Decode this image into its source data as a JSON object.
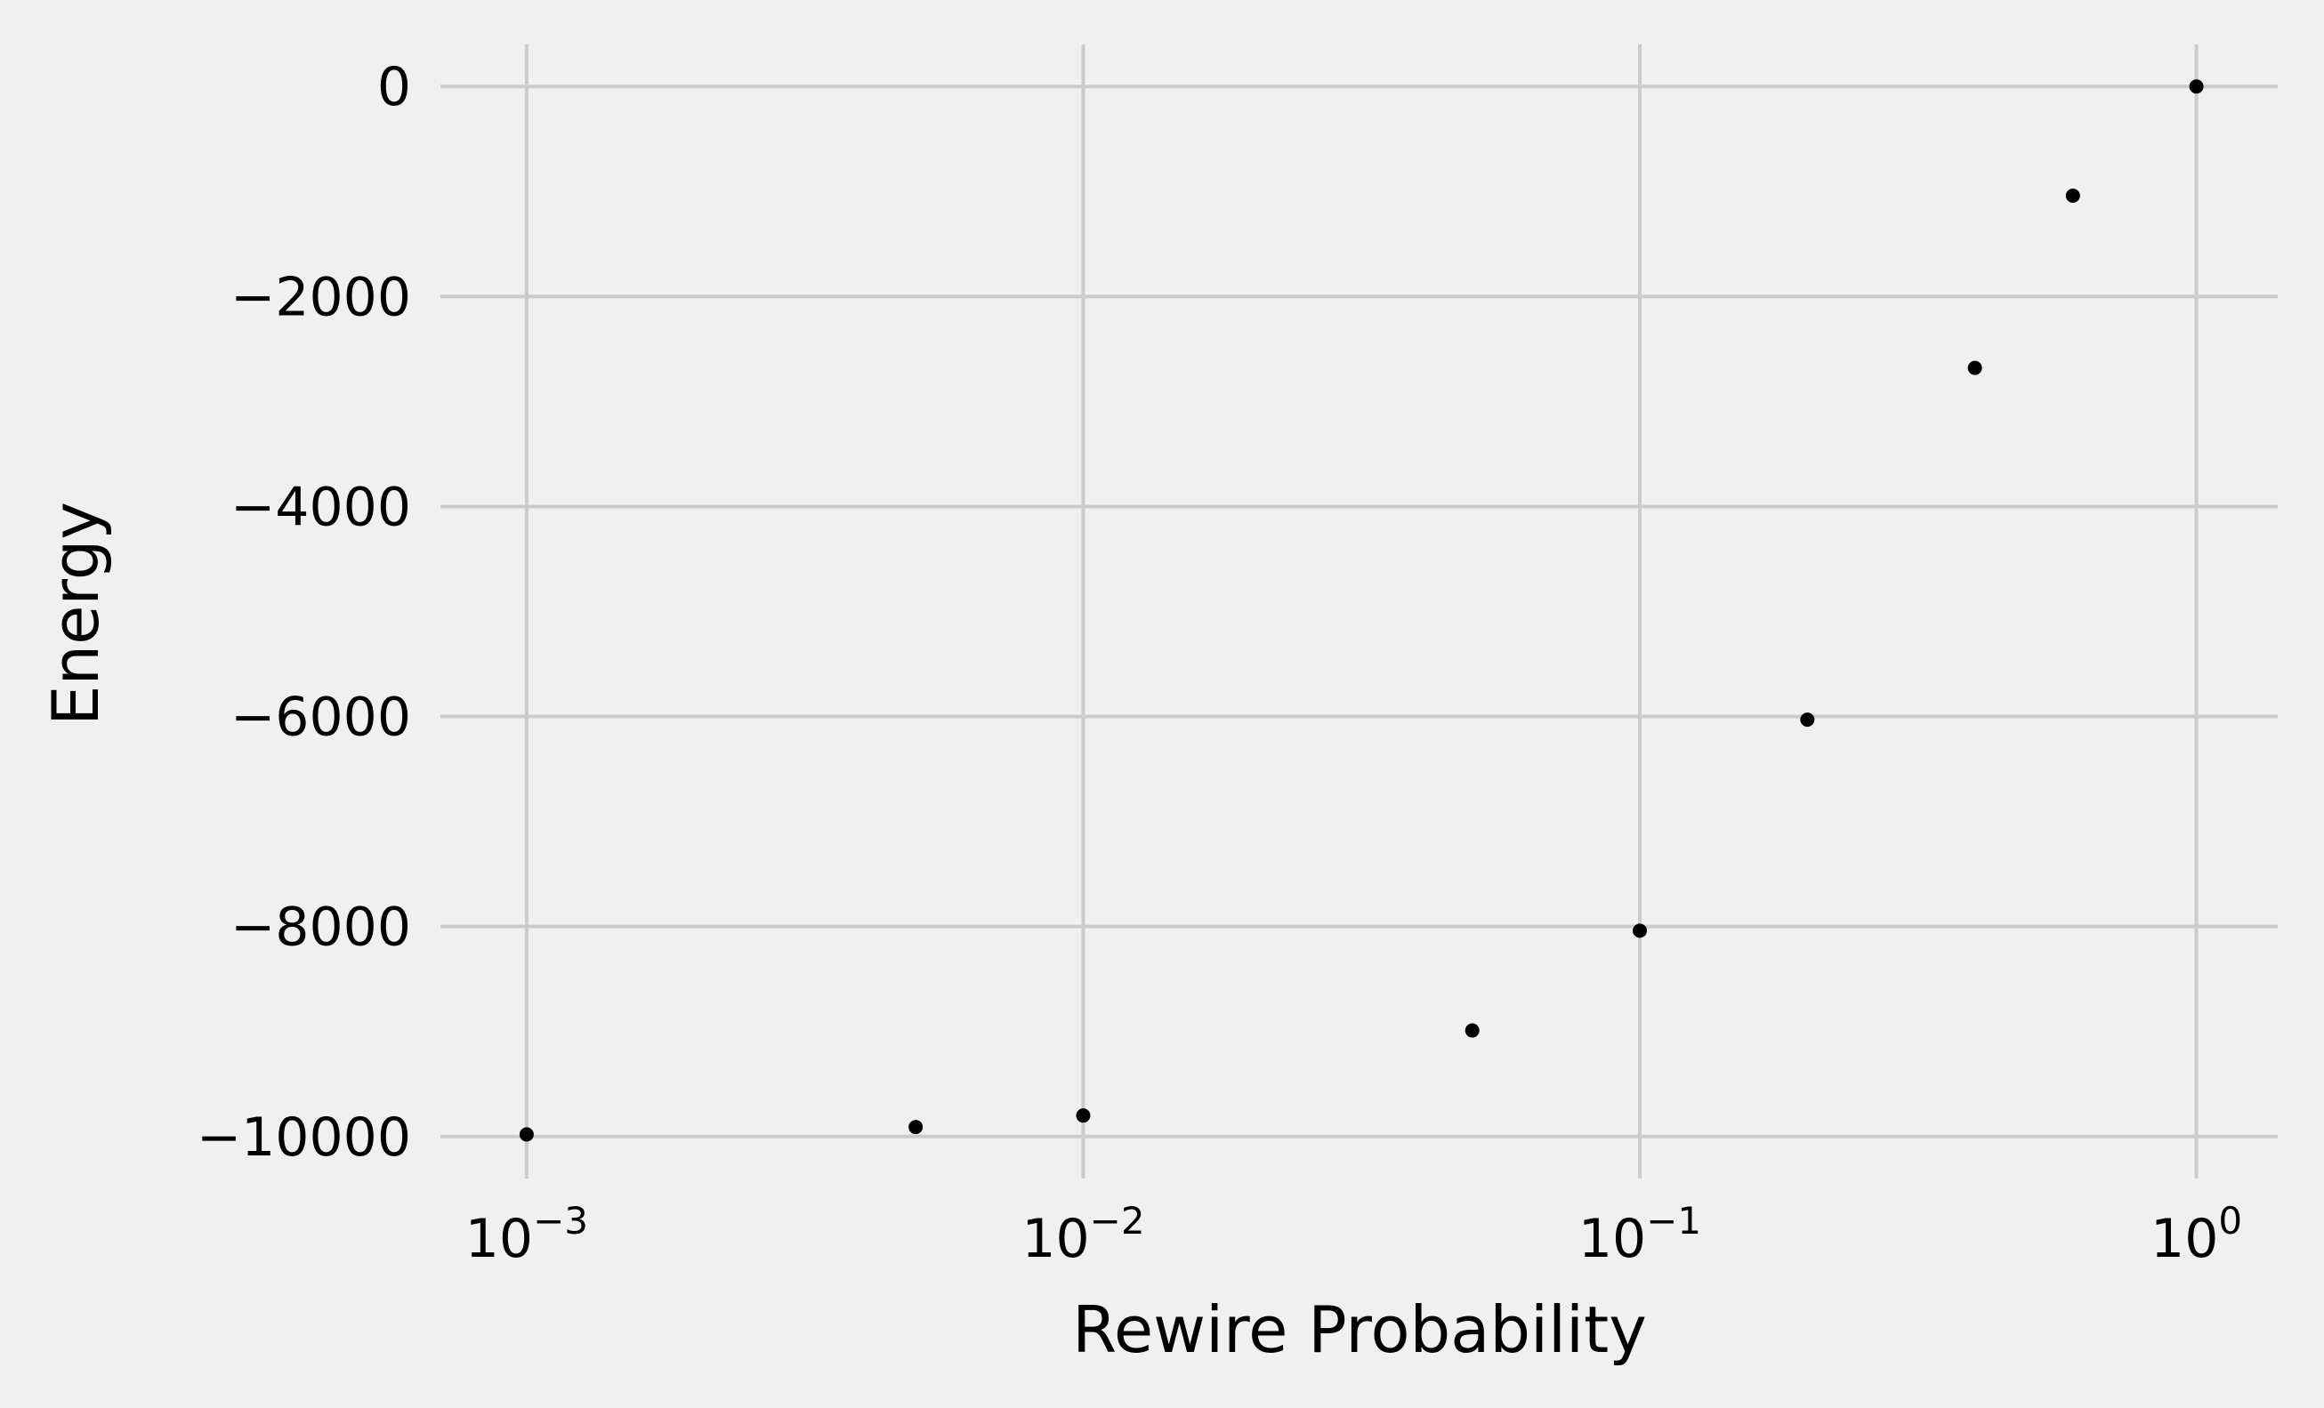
{
  "chart_data": {
    "type": "scatter",
    "title": "",
    "xlabel": "Rewire Probability",
    "ylabel": "Energy",
    "x_scale": "log",
    "xlim": [
      0.0007,
      1.4
    ],
    "ylim": [
      -10400,
      400
    ],
    "x_ticks": [
      {
        "value": 0.001,
        "base": "10",
        "exp": "−3"
      },
      {
        "value": 0.01,
        "base": "10",
        "exp": "−2"
      },
      {
        "value": 0.1,
        "base": "10",
        "exp": "−1"
      },
      {
        "value": 1,
        "base": "10",
        "exp": "0"
      }
    ],
    "y_ticks": [
      {
        "value": 0,
        "label": "0"
      },
      {
        "value": -2000,
        "label": "−2000"
      },
      {
        "value": -4000,
        "label": "−4000"
      },
      {
        "value": -6000,
        "label": "−6000"
      },
      {
        "value": -8000,
        "label": "−8000"
      },
      {
        "value": -10000,
        "label": "−10000"
      }
    ],
    "grid": true,
    "marker_color": "#000000",
    "grid_color": "#cbcbcb",
    "background_color": "#f0f0f0",
    "series": [
      {
        "x": [
          0.001,
          0.005,
          0.01,
          0.05,
          0.1,
          0.2,
          0.4,
          0.6,
          1.0
        ],
        "y": [
          -9980,
          -9910,
          -9800,
          -8990,
          -8040,
          -6030,
          -2680,
          -1040,
          0
        ]
      }
    ]
  }
}
